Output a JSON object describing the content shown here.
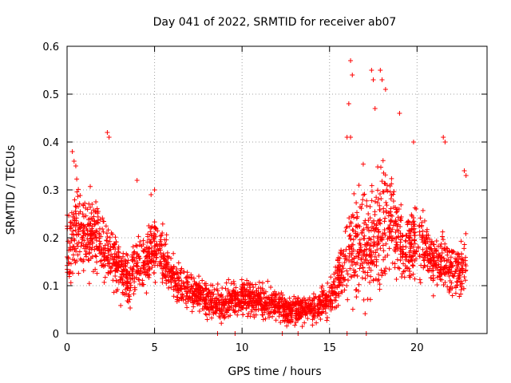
{
  "chart_data": {
    "type": "scatter",
    "title": "Day 041 of 2022, SRMTID for receiver ab07",
    "xlabel": "GPS time / hours",
    "ylabel": "SRMTID / TECUs",
    "xlim": [
      0,
      24
    ],
    "ylim": [
      0,
      0.6
    ],
    "xticks": [
      "0",
      "5",
      "10",
      "15",
      "20"
    ],
    "yticks": [
      "0",
      "0.1",
      "0.2",
      "0.3",
      "0.4",
      "0.5",
      "0.6"
    ],
    "grid": true,
    "marker": "+",
    "color": "#ff0000",
    "envelope": {
      "hours": [
        0,
        0.5,
        1,
        1.5,
        2,
        2.5,
        3,
        3.5,
        4,
        4.5,
        5,
        5.5,
        6,
        6.5,
        7,
        8,
        9,
        10,
        11,
        12,
        12.5,
        13,
        14,
        14.5,
        15,
        15.5,
        16,
        16.5,
        17,
        17.5,
        18,
        18.5,
        19,
        19.5,
        20,
        20.5,
        21,
        21.5,
        22,
        22.5,
        22.8
      ],
      "center": [
        0.18,
        0.22,
        0.2,
        0.21,
        0.19,
        0.16,
        0.13,
        0.11,
        0.14,
        0.15,
        0.19,
        0.16,
        0.12,
        0.1,
        0.09,
        0.07,
        0.06,
        0.08,
        0.07,
        0.06,
        0.05,
        0.05,
        0.05,
        0.06,
        0.07,
        0.12,
        0.16,
        0.18,
        0.19,
        0.2,
        0.22,
        0.24,
        0.19,
        0.18,
        0.2,
        0.18,
        0.14,
        0.15,
        0.13,
        0.13,
        0.14
      ],
      "spread": [
        0.07,
        0.08,
        0.07,
        0.06,
        0.06,
        0.05,
        0.05,
        0.04,
        0.05,
        0.05,
        0.06,
        0.05,
        0.04,
        0.04,
        0.035,
        0.03,
        0.03,
        0.035,
        0.03,
        0.03,
        0.025,
        0.025,
        0.025,
        0.03,
        0.035,
        0.05,
        0.08,
        0.1,
        0.1,
        0.1,
        0.12,
        0.1,
        0.08,
        0.07,
        0.07,
        0.06,
        0.05,
        0.06,
        0.05,
        0.05,
        0.06
      ]
    },
    "notable_points": [
      {
        "x": 0.3,
        "y": 0.38
      },
      {
        "x": 0.4,
        "y": 0.36
      },
      {
        "x": 0.5,
        "y": 0.35
      },
      {
        "x": 2.3,
        "y": 0.42
      },
      {
        "x": 2.4,
        "y": 0.41
      },
      {
        "x": 4.0,
        "y": 0.32
      },
      {
        "x": 4.8,
        "y": 0.29
      },
      {
        "x": 5.0,
        "y": 0.3
      },
      {
        "x": 16.2,
        "y": 0.57
      },
      {
        "x": 16.3,
        "y": 0.54
      },
      {
        "x": 17.4,
        "y": 0.55
      },
      {
        "x": 17.5,
        "y": 0.53
      },
      {
        "x": 17.9,
        "y": 0.55
      },
      {
        "x": 18.0,
        "y": 0.53
      },
      {
        "x": 18.2,
        "y": 0.51
      },
      {
        "x": 16.1,
        "y": 0.48
      },
      {
        "x": 16.0,
        "y": 0.41
      },
      {
        "x": 16.2,
        "y": 0.41
      },
      {
        "x": 17.6,
        "y": 0.47
      },
      {
        "x": 19.0,
        "y": 0.46
      },
      {
        "x": 19.8,
        "y": 0.4
      },
      {
        "x": 21.5,
        "y": 0.41
      },
      {
        "x": 21.6,
        "y": 0.4
      },
      {
        "x": 22.7,
        "y": 0.34
      },
      {
        "x": 22.8,
        "y": 0.33
      }
    ],
    "zero_points_hours": [
      8.6,
      9.6,
      12.3,
      13.2,
      16.0,
      17.1
    ],
    "n_points": 2600
  }
}
